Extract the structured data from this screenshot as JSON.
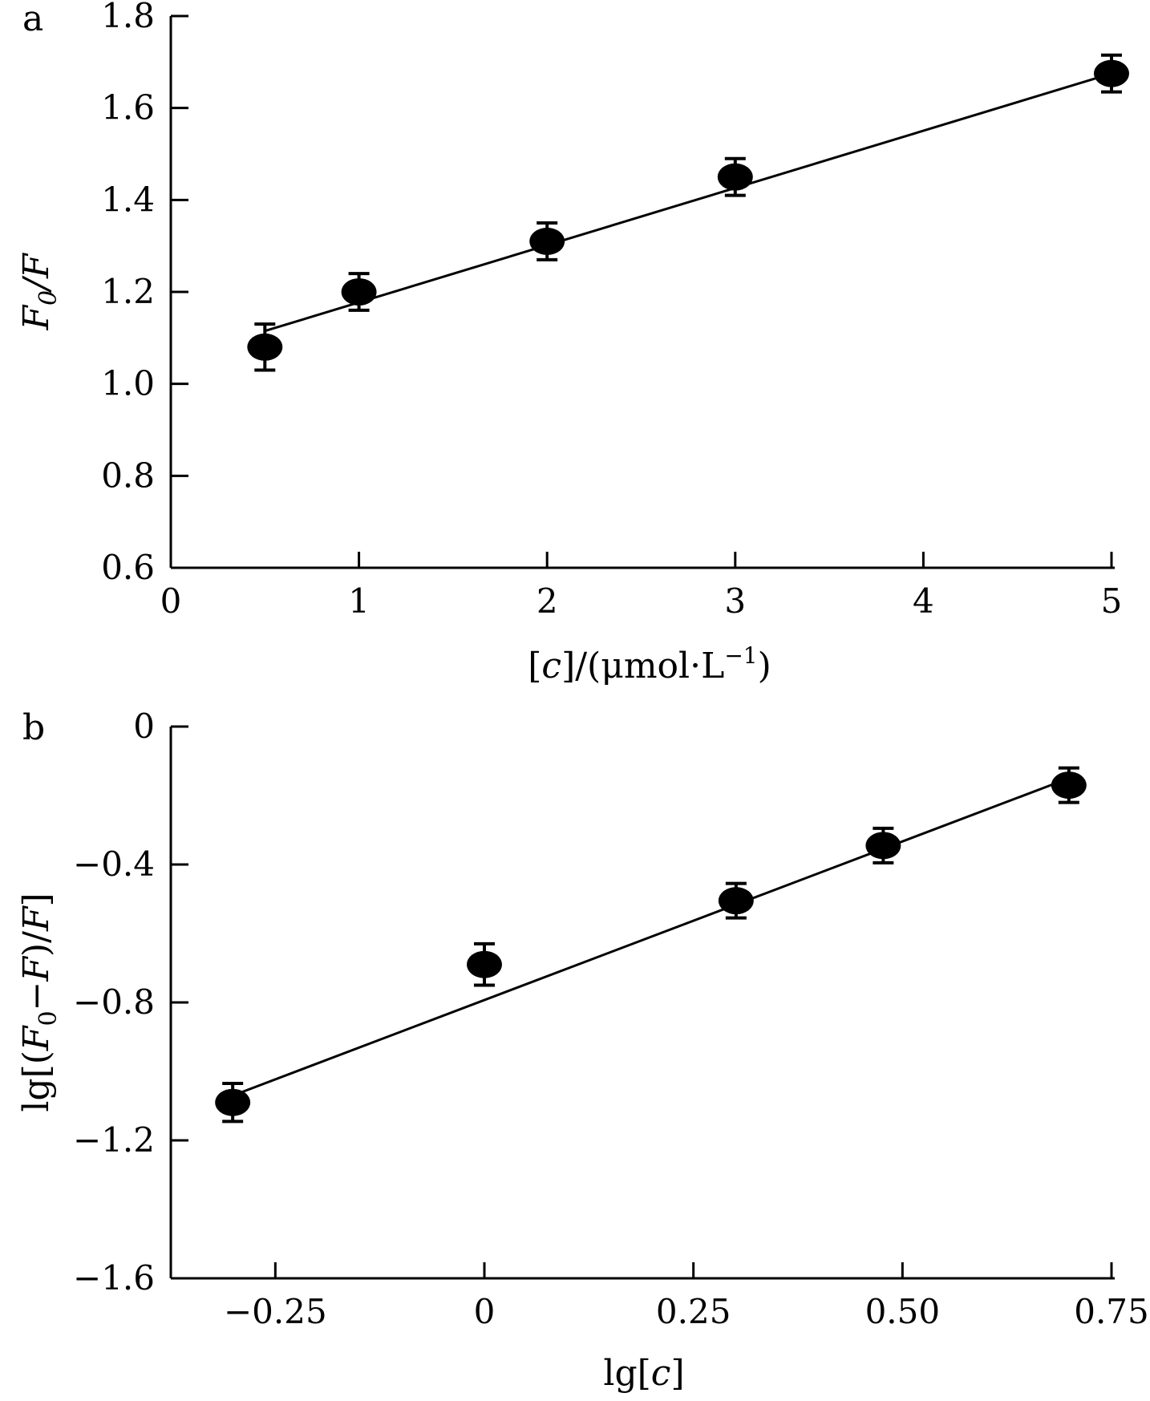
{
  "chart_data": [
    {
      "panel": "a",
      "type": "scatter",
      "xlabel": "[c]/(μmol·L⁻¹)",
      "ylabel": "F0/F",
      "xlim": [
        0,
        5
      ],
      "ylim": [
        0.6,
        1.8
      ],
      "xticks": [
        0,
        1,
        2,
        3,
        4,
        5
      ],
      "xtick_labels": [
        "0",
        "1",
        "2",
        "3",
        "4",
        "5"
      ],
      "yticks": [
        0.6,
        0.8,
        1.0,
        1.2,
        1.4,
        1.6,
        1.8
      ],
      "ytick_labels": [
        "0.6",
        "0.8",
        "1.0",
        "1.2",
        "1.4",
        "1.6",
        "1.8"
      ],
      "grid": false,
      "series": [
        {
          "x": [
            0.5,
            1,
            2,
            3,
            5
          ],
          "y": [
            1.08,
            1.2,
            1.31,
            1.45,
            1.675
          ],
          "error": [
            0.05,
            0.04,
            0.04,
            0.04,
            0.04
          ]
        }
      ],
      "fit_line": {
        "x": [
          0.5,
          5
        ],
        "y": [
          1.115,
          1.675
        ]
      }
    },
    {
      "panel": "b",
      "type": "scatter",
      "xlabel": "lg[c]",
      "ylabel": "lg[(F0−F)/F]",
      "xlim": [
        -0.375,
        0.75
      ],
      "ylim": [
        -1.6,
        0
      ],
      "xticks": [
        -0.25,
        0,
        0.25,
        0.5,
        0.75
      ],
      "xtick_labels": [
        "−0.25",
        "0",
        "0.25",
        "0.50",
        "0.75"
      ],
      "yticks": [
        0,
        -0.4,
        -0.8,
        -1.2,
        -1.6
      ],
      "ytick_labels": [
        "0",
        "−0.4",
        "−0.8",
        "−1.2",
        "−1.6"
      ],
      "grid": false,
      "series": [
        {
          "x": [
            -0.301,
            0,
            0.301,
            0.477,
            0.699
          ],
          "y": [
            -1.09,
            -0.69,
            -0.505,
            -0.345,
            -0.17
          ],
          "error": [
            0.055,
            0.06,
            0.05,
            0.05,
            0.05
          ]
        }
      ],
      "fit_line": {
        "x": [
          -0.301,
          0.699
        ],
        "y": [
          -1.07,
          -0.15
        ]
      }
    }
  ]
}
